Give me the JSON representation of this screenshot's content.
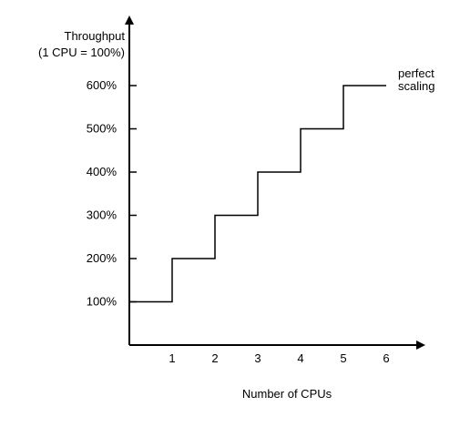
{
  "chart_data": {
    "type": "line",
    "step": true,
    "ylabel_lines": [
      "Throughput",
      "(1 CPU = 100%)"
    ],
    "xlabel": "Number of CPUs",
    "x_ticks": [
      "1",
      "2",
      "3",
      "4",
      "5",
      "6"
    ],
    "y_ticks": [
      "100%",
      "200%",
      "300%",
      "400%",
      "500%",
      "600%"
    ],
    "xlim": [
      0,
      6.5
    ],
    "ylim": [
      0,
      700
    ],
    "series": [
      {
        "name_lines": [
          "perfect",
          "scaling"
        ],
        "points": [
          {
            "x": 0,
            "y": 100
          },
          {
            "x": 1,
            "y": 100
          },
          {
            "x": 1,
            "y": 200
          },
          {
            "x": 2,
            "y": 200
          },
          {
            "x": 2,
            "y": 300
          },
          {
            "x": 3,
            "y": 300
          },
          {
            "x": 3,
            "y": 400
          },
          {
            "x": 4,
            "y": 400
          },
          {
            "x": 4,
            "y": 500
          },
          {
            "x": 5,
            "y": 500
          },
          {
            "x": 5,
            "y": 600
          },
          {
            "x": 6,
            "y": 600
          }
        ]
      }
    ],
    "grid": false,
    "line_color": "#000000",
    "axis_color": "#000000"
  }
}
